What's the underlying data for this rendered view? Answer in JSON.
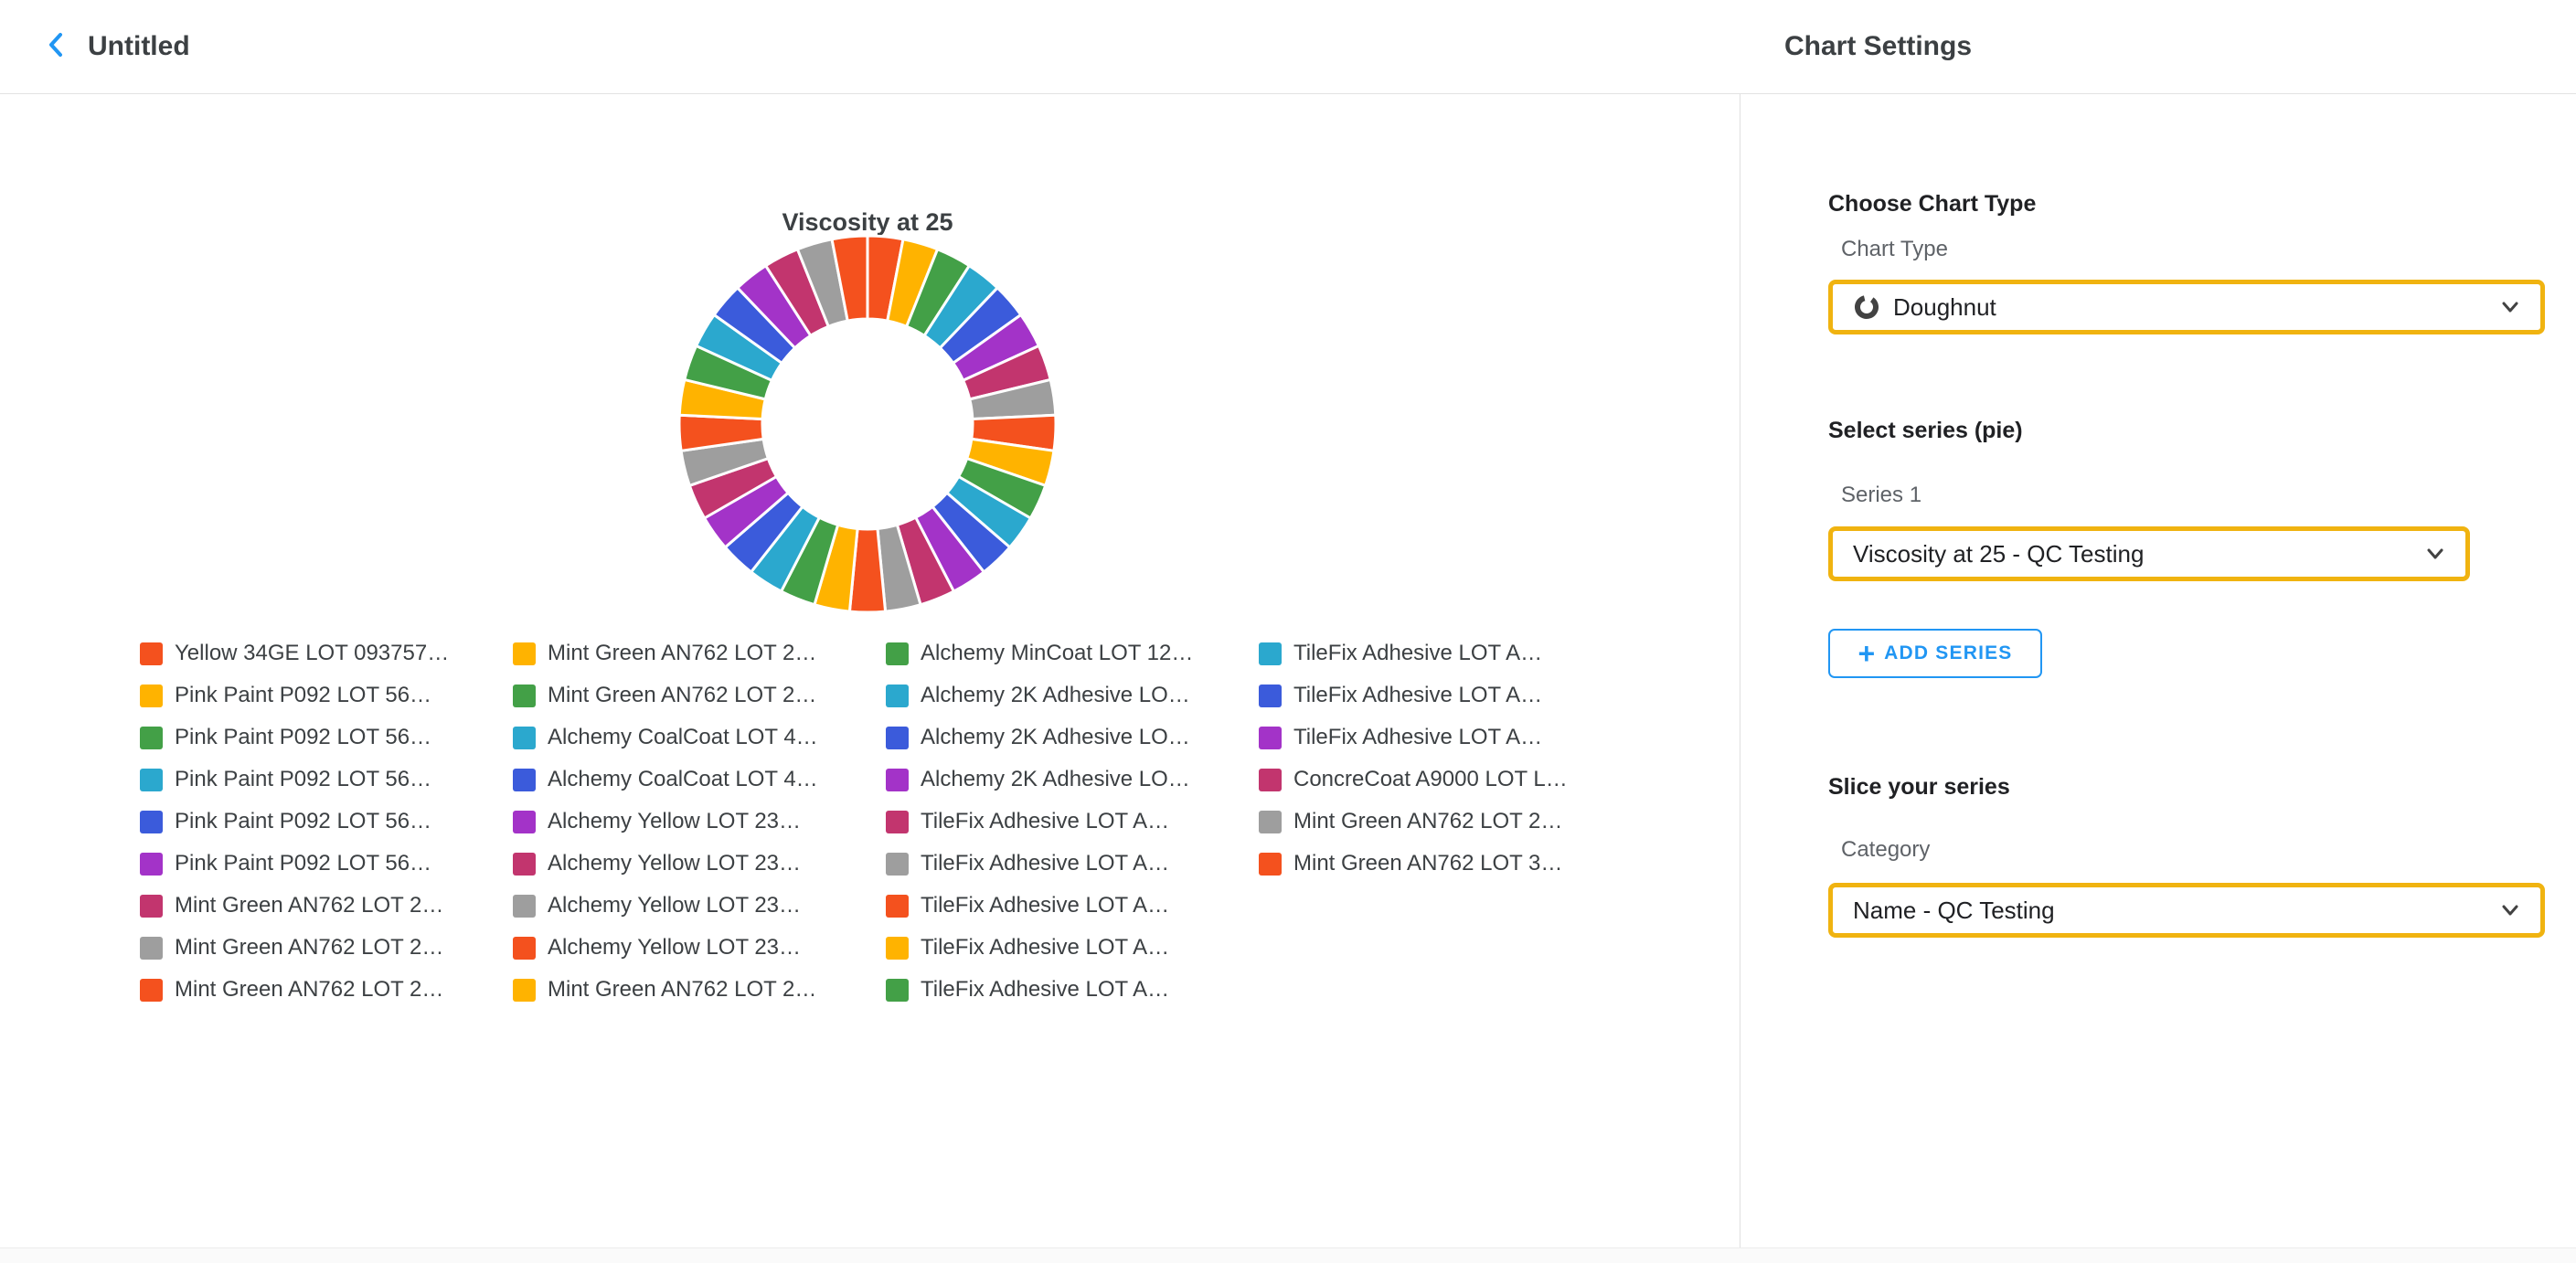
{
  "topbar": {
    "title": "Untitled"
  },
  "panel": {
    "header": "Chart Settings",
    "chart_type": {
      "heading": "Choose Chart Type",
      "label": "Chart Type",
      "value": "Doughnut"
    },
    "series": {
      "heading": "Select series (pie)",
      "label": "Series 1",
      "value": "Viscosity at 25 - QC Testing",
      "add_series_label": "ADD SERIES"
    },
    "slice": {
      "heading": "Slice your series",
      "label": "Category",
      "value": "Name - QC Testing"
    }
  },
  "colors": {
    "highlight": "#F0B310",
    "accent_blue": "#2196F3"
  },
  "chart_data": {
    "type": "pie",
    "variant": "doughnut",
    "title": "Viscosity at 25",
    "inner_radius_ratio": 0.56,
    "legend_position": "bottom",
    "palette": [
      "#F4511E",
      "#FFB300",
      "#43A047",
      "#2BA8CE",
      "#3B5BDB",
      "#A333C8",
      "#C2356E",
      "#9E9E9E"
    ],
    "labels": [
      "Yellow 34GE LOT 093757…",
      "Pink Paint P092 LOT 56…",
      "Pink Paint P092 LOT 56…",
      "Pink Paint P092 LOT 56…",
      "Pink Paint P092 LOT 56…",
      "Pink Paint P092 LOT 56…",
      "Mint Green AN762 LOT 2…",
      "Mint Green AN762 LOT 2…",
      "Mint Green AN762 LOT 2…",
      "Mint Green AN762 LOT 2…",
      "Mint Green AN762 LOT 2…",
      "Alchemy CoalCoat LOT 4…",
      "Alchemy CoalCoat LOT 4…",
      "Alchemy Yellow  LOT 23…",
      "Alchemy Yellow  LOT 23…",
      "Alchemy Yellow  LOT 23…",
      "Alchemy Yellow  LOT 23…",
      "Mint Green AN762 LOT 2…",
      "Alchemy MinCoat LOT 12…",
      "Alchemy 2K Adhesive LO…",
      "Alchemy 2K Adhesive LO…",
      "Alchemy 2K Adhesive LO…",
      "TileFix Adhesive LOT A…",
      "TileFix Adhesive LOT A…",
      "TileFix Adhesive LOT A…",
      "TileFix Adhesive LOT A…",
      "TileFix Adhesive LOT A…",
      "TileFix Adhesive LOT A…",
      "TileFix Adhesive LOT A…",
      "TileFix Adhesive LOT A…",
      "ConcreCoat A9000 LOT L…",
      "Mint Green AN762 LOT 2…",
      "Mint Green AN762 LOT 3…"
    ],
    "values": [
      1,
      1,
      1,
      1,
      1,
      1,
      1,
      1,
      1,
      1,
      1,
      1,
      1,
      1,
      1,
      1,
      1,
      1,
      1,
      1,
      1,
      1,
      1,
      1,
      1,
      1,
      1,
      1,
      1,
      1,
      1,
      1,
      1
    ]
  }
}
